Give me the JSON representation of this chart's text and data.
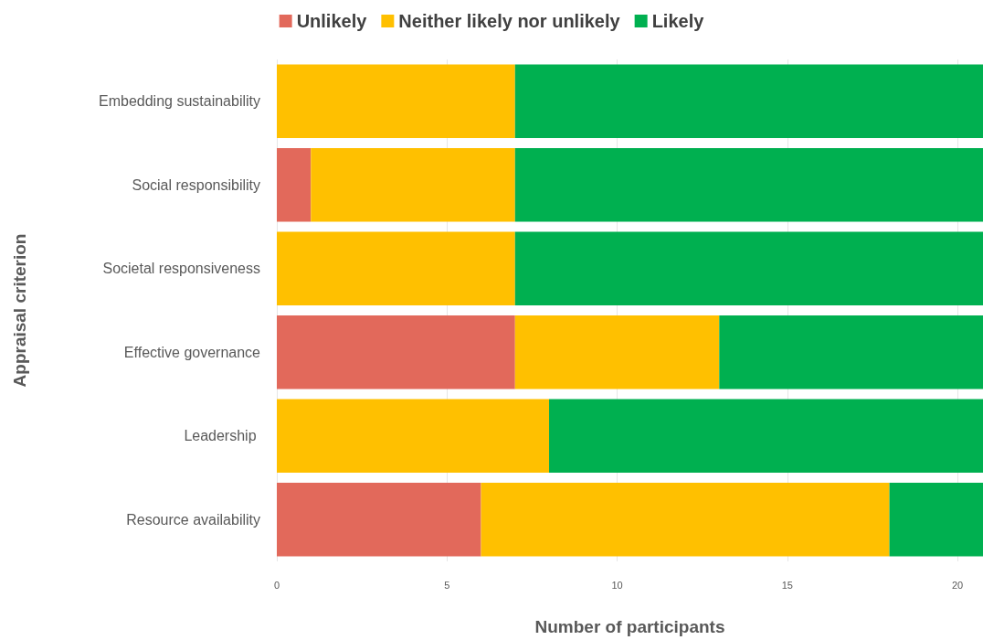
{
  "chart_data": {
    "type": "bar",
    "orientation": "horizontal",
    "stacked": true,
    "xlabel": "Number of participants",
    "ylabel": "Appraisal criterion",
    "categories": [
      "Embedding sustainability",
      "Social responsibility",
      "Societal responsiveness",
      "Effective governance",
      "Leadership ",
      "Resource availability"
    ],
    "series": [
      {
        "name": "Unlikely",
        "color": "#e2695b",
        "values": [
          0,
          1,
          0,
          7,
          0,
          6
        ]
      },
      {
        "name": "Neither likely nor unlikely",
        "color": "#ffc000",
        "values": [
          7,
          6,
          7,
          6,
          8,
          12
        ]
      },
      {
        "name": "Likely",
        "color": "#00b050",
        "values": [
          13.75,
          13.75,
          13.75,
          7.75,
          12.75,
          2.75
        ]
      }
    ],
    "xlim": [
      0,
      20.75
    ],
    "xticks": [
      0,
      5,
      10,
      15,
      20
    ],
    "grid": "x",
    "legend": "top"
  }
}
